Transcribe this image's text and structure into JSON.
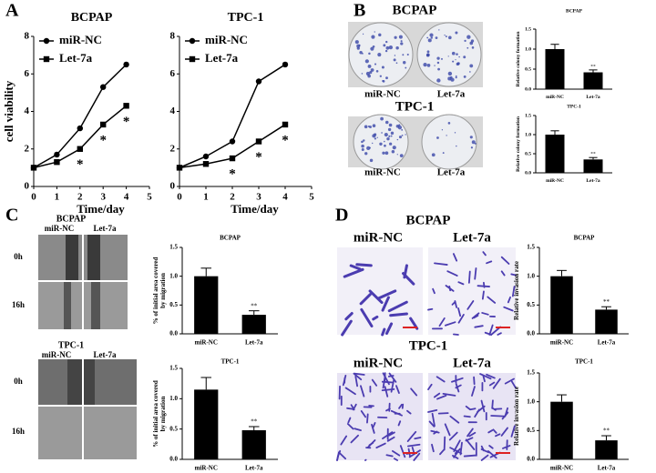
{
  "figure": {
    "panels": [
      {
        "letter": "A"
      },
      {
        "letter": "B",
        "blocks": [
          {
            "title": "BCPAP",
            "columns": [
              "miR-NC",
              "Let-7a"
            ]
          },
          {
            "title": "TPC-1",
            "columns": [
              "miR-NC",
              "Let-7a"
            ]
          }
        ]
      },
      {
        "letter": "C",
        "blocks": [
          {
            "title": "BCPAP",
            "columns": [
              "miR-NC",
              "Let-7a"
            ],
            "rows": [
              "0h",
              "16h"
            ]
          },
          {
            "title": "TPC-1",
            "columns": [
              "miR-NC",
              "Let-7a"
            ],
            "rows": [
              "0h",
              "16h"
            ]
          }
        ]
      },
      {
        "letter": "D",
        "blocks": [
          {
            "title": "BCPAP",
            "columns": [
              "miR-NC",
              "Let-7a"
            ]
          },
          {
            "title": "TPC-1",
            "columns": [
              "miR-NC",
              "Let-7a"
            ]
          }
        ]
      }
    ]
  },
  "chart_data": [
    {
      "type": "line",
      "title": "BCPAP",
      "xlabel": "Time/day",
      "ylabel": "cell viability",
      "x": [
        0,
        1,
        2,
        3,
        4
      ],
      "xlim": [
        0,
        5
      ],
      "xticks": [
        0,
        1,
        2,
        3,
        4,
        5
      ],
      "ylim": [
        0,
        8
      ],
      "yticks": [
        0,
        2,
        4,
        6,
        8
      ],
      "series": [
        {
          "name": "miR-NC",
          "color": "#000000",
          "marker": "circle",
          "values": [
            1,
            1.7,
            3.1,
            5.3,
            6.5
          ]
        },
        {
          "name": "Let-7a",
          "color": "#000000",
          "marker": "square",
          "values": [
            1,
            1.3,
            2.0,
            3.3,
            4.3
          ]
        }
      ],
      "annotations": [
        {
          "x": 2,
          "text": "*"
        },
        {
          "x": 3,
          "text": "*"
        },
        {
          "x": 4,
          "text": "*"
        }
      ]
    },
    {
      "type": "line",
      "title": "TPC-1",
      "xlabel": "Time/day",
      "x": [
        0,
        1,
        2,
        3,
        4
      ],
      "xlim": [
        0,
        5
      ],
      "xticks": [
        0,
        1,
        2,
        3,
        4,
        5
      ],
      "ylim": [
        0,
        8
      ],
      "yticks": [
        0,
        2,
        4,
        6,
        8
      ],
      "series": [
        {
          "name": "miR-NC",
          "color": "#000000",
          "marker": "circle",
          "values": [
            1,
            1.6,
            2.4,
            5.6,
            6.5
          ]
        },
        {
          "name": "Let-7a",
          "color": "#000000",
          "marker": "square",
          "values": [
            1,
            1.2,
            1.5,
            2.4,
            3.3
          ]
        }
      ],
      "annotations": [
        {
          "x": 2,
          "text": "*"
        },
        {
          "x": 3,
          "text": "*"
        },
        {
          "x": 4,
          "text": "*"
        }
      ]
    },
    {
      "type": "bar",
      "title": "BCPAP",
      "ylabel": "Relative colony formation",
      "categories": [
        "miR-NC",
        "Let-7a"
      ],
      "values": [
        1.0,
        0.42
      ],
      "errors": [
        0.12,
        0.06
      ],
      "color": "#000000",
      "annotation": "**",
      "ylim": [
        0,
        1.5
      ],
      "yticks": [
        {
          "value": 0,
          "label": "0.0"
        },
        0.5,
        {
          "value": 1,
          "label": "1.0"
        },
        1.5
      ]
    },
    {
      "type": "bar",
      "title": "TPC-1",
      "ylabel": "Relative colony formation",
      "categories": [
        "miR-NC",
        "Let-7a"
      ],
      "values": [
        1.0,
        0.35
      ],
      "errors": [
        0.1,
        0.05
      ],
      "color": "#000000",
      "annotation": "**",
      "ylim": [
        0,
        1.5
      ],
      "yticks": [
        {
          "value": 0,
          "label": "0.0"
        },
        0.5,
        {
          "value": 1,
          "label": "1.0"
        },
        1.5
      ]
    },
    {
      "type": "bar",
      "title": "BCPAP",
      "ylabel": [
        "% of initial area covered",
        "by migration"
      ],
      "categories": [
        "miR-NC",
        "Let-7a"
      ],
      "values": [
        1.0,
        0.33
      ],
      "errors": [
        0.14,
        0.07
      ],
      "color": "#000000",
      "annotation": "**",
      "ylim": [
        0,
        1.5
      ],
      "yticks": [
        {
          "value": 0,
          "label": "0.0"
        },
        0.5,
        {
          "value": 1,
          "label": "1.0"
        },
        1.5
      ]
    },
    {
      "type": "bar",
      "title": "TPC-1",
      "ylabel": [
        "% of initial area covered",
        "by migration"
      ],
      "categories": [
        "miR-NC",
        "Let-7a"
      ],
      "values": [
        1.15,
        0.48
      ],
      "errors": [
        0.2,
        0.06
      ],
      "color": "#000000",
      "annotation": "**",
      "ylim": [
        0,
        1.5
      ],
      "yticks": [
        {
          "value": 0,
          "label": "0.0"
        },
        0.5,
        {
          "value": 1,
          "label": "1.0"
        },
        1.5
      ]
    },
    {
      "type": "bar",
      "title": "BCPAP",
      "ylabel": "Relative invasion rate",
      "categories": [
        "miR-NC",
        "Let-7a"
      ],
      "values": [
        1.0,
        0.42
      ],
      "errors": [
        0.1,
        0.05
      ],
      "color": "#000000",
      "annotation": "**",
      "ylim": [
        0,
        1.5
      ],
      "yticks": [
        {
          "value": 0,
          "label": "0.0"
        },
        0.5,
        {
          "value": 1,
          "label": "1.0"
        },
        1.5
      ]
    },
    {
      "type": "bar",
      "title": "TPC-1",
      "ylabel": "Relative invasion rate",
      "categories": [
        "miR-NC",
        "Let-7a"
      ],
      "values": [
        1.0,
        0.33
      ],
      "errors": [
        0.12,
        0.08
      ],
      "color": "#000000",
      "annotation": "**",
      "ylim": [
        0,
        1.5
      ],
      "yticks": [
        {
          "value": 0,
          "label": "0.0"
        },
        0.5,
        {
          "value": 1,
          "label": "1.0"
        },
        1.5
      ]
    }
  ]
}
